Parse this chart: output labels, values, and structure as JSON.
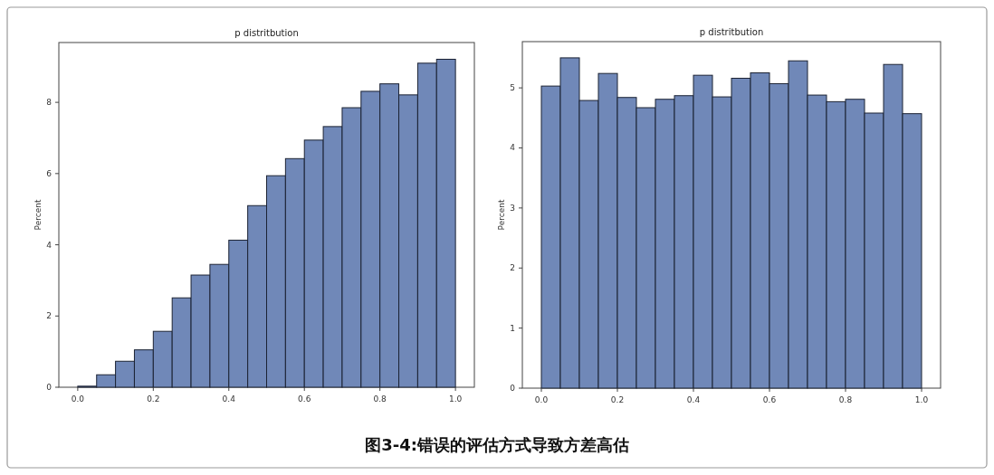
{
  "chart_data": [
    {
      "type": "histogram",
      "title": "p distritbution",
      "ylabel": "Percent",
      "bins": [
        0.0,
        0.05,
        0.1,
        0.15,
        0.2,
        0.25,
        0.3,
        0.35,
        0.4,
        0.45,
        0.5,
        0.55,
        0.6,
        0.65,
        0.7,
        0.75,
        0.8,
        0.85,
        0.9,
        0.95,
        1.0
      ],
      "values": [
        0.03,
        0.35,
        0.73,
        1.05,
        1.57,
        2.51,
        3.15,
        3.45,
        4.13,
        5.1,
        5.94,
        6.42,
        6.94,
        7.32,
        7.85,
        8.31,
        8.52,
        8.21,
        9.1,
        9.21
      ],
      "color": "#7088b8",
      "xlim": [
        -0.05,
        1.05
      ],
      "ylim": [
        0,
        9.68
      ],
      "xticks": [
        {
          "value": 0,
          "label": "0.0"
        },
        {
          "value": 0.2,
          "label": "0.2"
        },
        {
          "value": 0.4,
          "label": "0.4"
        },
        {
          "value": 0.6,
          "label": "0.6"
        },
        {
          "value": 0.8,
          "label": "0.8"
        },
        {
          "value": 1,
          "label": "1.0"
        }
      ],
      "yticks": [
        0,
        2,
        4,
        6,
        8
      ],
      "annotations": [
        "图3-4:错误的评估方式导致方差高估"
      ]
    },
    {
      "type": "histogram",
      "title": "p distritbution",
      "ylabel": "Percent",
      "bins": [
        0.0,
        0.05,
        0.1,
        0.15,
        0.2,
        0.25,
        0.3,
        0.35,
        0.4,
        0.45,
        0.5,
        0.55,
        0.6,
        0.65,
        0.7,
        0.75,
        0.8,
        0.85,
        0.9,
        0.95,
        1.0
      ],
      "values": [
        5.03,
        5.5,
        4.79,
        5.24,
        4.84,
        4.67,
        4.81,
        4.87,
        5.21,
        4.85,
        5.16,
        5.25,
        5.07,
        5.45,
        4.88,
        4.77,
        4.81,
        4.58,
        5.39,
        4.57
      ],
      "color": "#7088b8",
      "xlim": [
        -0.05,
        1.05
      ],
      "ylim": [
        0,
        5.77
      ],
      "xticks": [
        {
          "value": 0,
          "label": "0.0"
        },
        {
          "value": 0.2,
          "label": "0.2"
        },
        {
          "value": 0.4,
          "label": "0.4"
        },
        {
          "value": 0.6,
          "label": "0.6"
        },
        {
          "value": 0.8,
          "label": "0.8"
        },
        {
          "value": 1,
          "label": "1.0"
        }
      ],
      "yticks": [
        0,
        1,
        2,
        3,
        4,
        5
      ]
    }
  ]
}
